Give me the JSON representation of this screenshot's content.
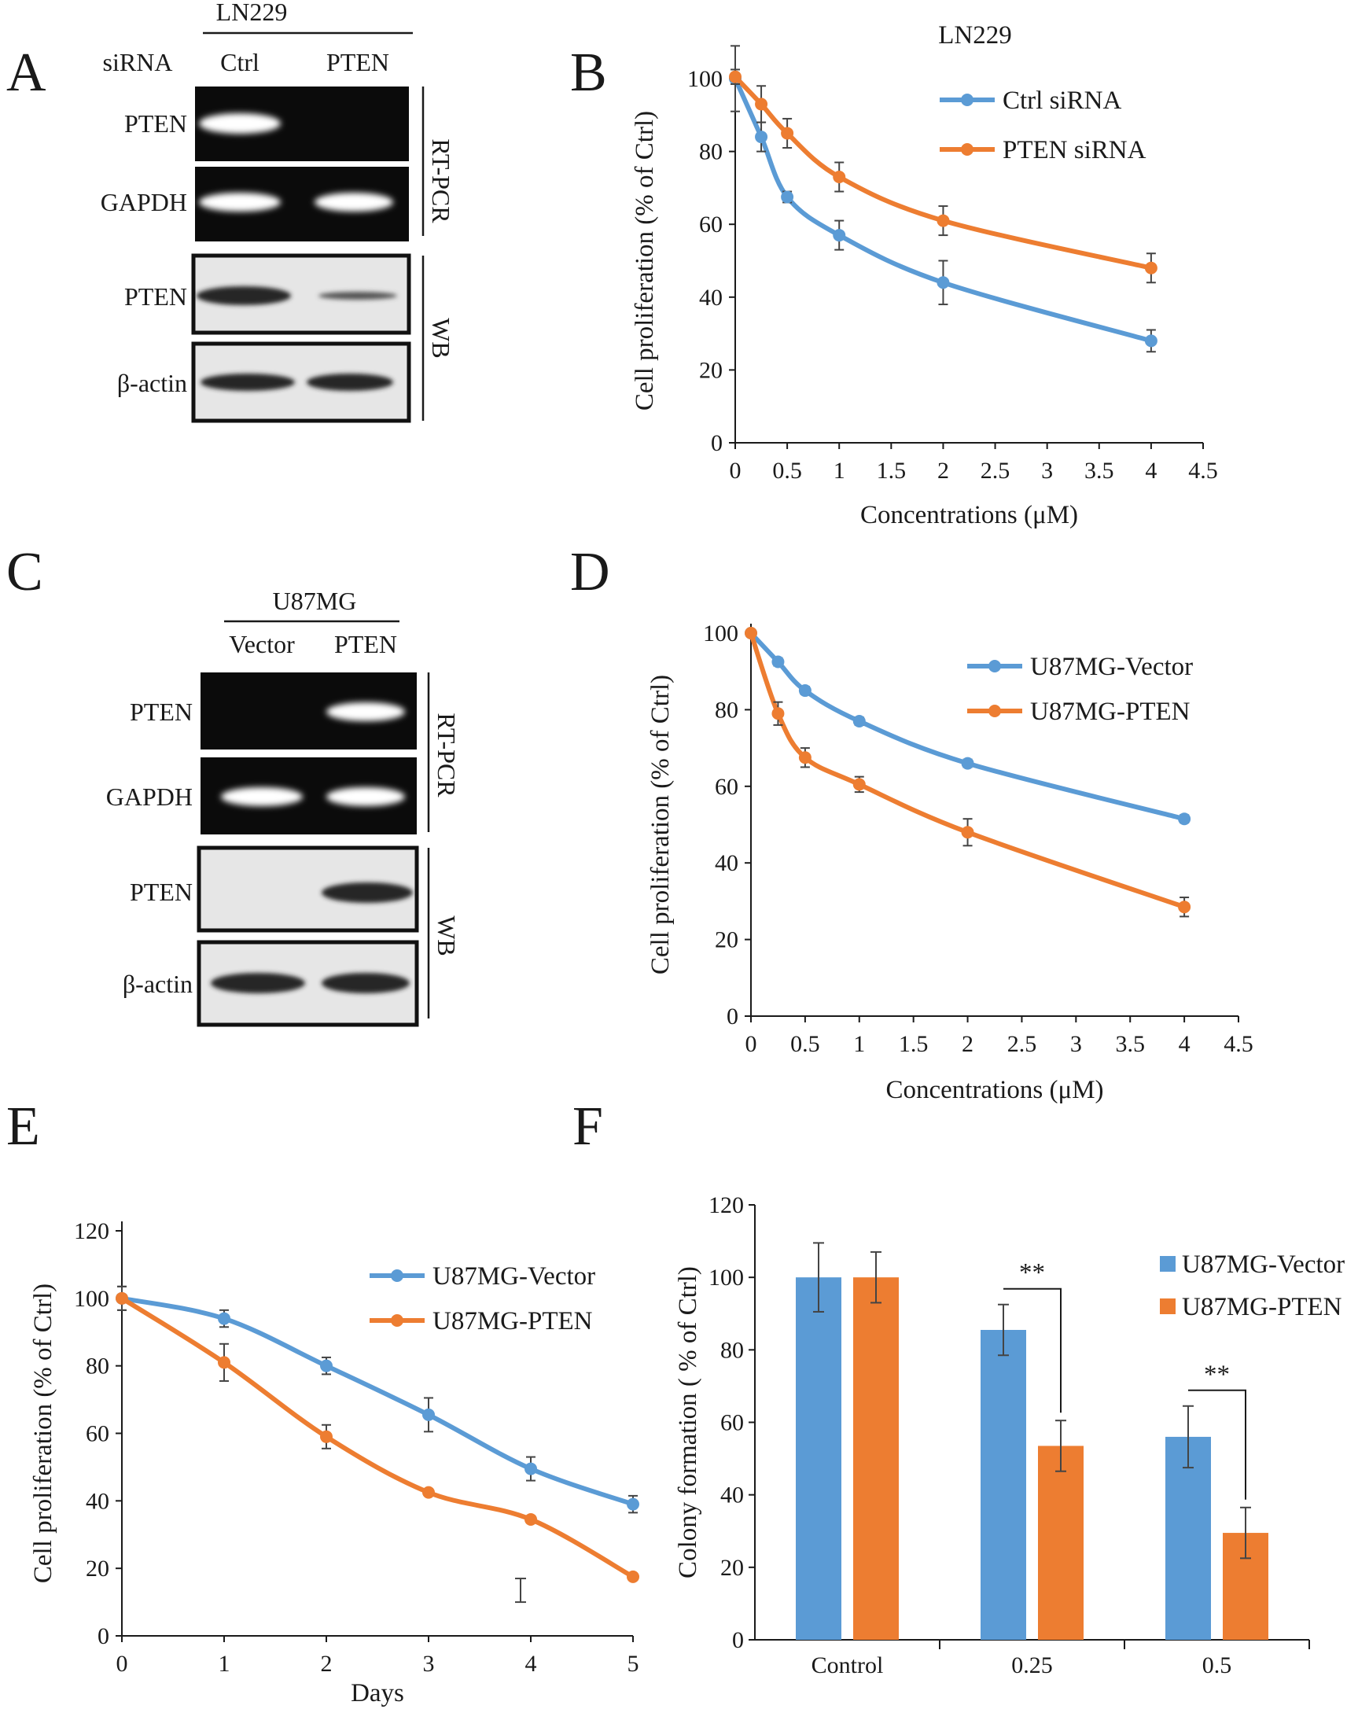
{
  "figure": {
    "panels": [
      "A",
      "B",
      "C",
      "D",
      "E",
      "F"
    ]
  },
  "colors": {
    "blue": "#5b9bd5",
    "orange": "#ed7d31",
    "dark": "#1a1a1a"
  },
  "gel_a": {
    "header": "LN229",
    "row_title": "siRNA",
    "lanes": [
      "Ctrl",
      "PTEN"
    ],
    "rows": [
      "PTEN",
      "GAPDH",
      "PTEN",
      "β-actin"
    ],
    "methods": [
      "RT-PCR",
      "WB"
    ]
  },
  "gel_c": {
    "header": "U87MG",
    "lanes": [
      "Vector",
      "PTEN"
    ],
    "rows": [
      "PTEN",
      "GAPDH",
      "PTEN",
      "β-actin"
    ],
    "methods": [
      "RT-PCR",
      "WB"
    ]
  },
  "chart_data": [
    {
      "panel": "B",
      "type": "line",
      "title": "LN229",
      "xlabel": "Concentrations (μM)",
      "ylabel": "Cell proliferation (% of Ctrl)",
      "xlim": [
        0,
        4.5
      ],
      "ylim": [
        0,
        100
      ],
      "xticks": [
        "0",
        "0.5",
        "1",
        "1.5",
        "2",
        "2.5",
        "3",
        "3.5",
        "4",
        "4.5"
      ],
      "yticks": [
        "0",
        "20",
        "40",
        "60",
        "80",
        "100"
      ],
      "legend": "top-right",
      "series": [
        {
          "name": "Ctrl siRNA",
          "color": "blue",
          "x": [
            0,
            0.25,
            0.5,
            1,
            2,
            4
          ],
          "values": [
            100,
            84,
            67.5,
            57,
            44,
            28
          ],
          "err": [
            9,
            4,
            1.5,
            4,
            6,
            3
          ]
        },
        {
          "name": "PTEN siRNA",
          "color": "orange",
          "x": [
            0,
            0.25,
            0.5,
            1,
            2,
            4
          ],
          "values": [
            100.5,
            93,
            85,
            73,
            61,
            48
          ],
          "err": [
            2,
            5,
            4,
            4,
            4,
            4
          ]
        }
      ]
    },
    {
      "panel": "D",
      "type": "line",
      "title": "",
      "xlabel": "Concentrations (μM)",
      "ylabel": "Cell proliferation (% of Ctrl)",
      "xlim": [
        0,
        4.5
      ],
      "ylim": [
        0,
        100
      ],
      "xticks": [
        "0",
        "0.5",
        "1",
        "1.5",
        "2",
        "2.5",
        "3",
        "3.5",
        "4",
        "4.5"
      ],
      "yticks": [
        "0",
        "20",
        "40",
        "60",
        "80",
        "100"
      ],
      "legend": "top-right",
      "series": [
        {
          "name": "U87MG-Vector",
          "color": "blue",
          "x": [
            0,
            0.25,
            0.5,
            1,
            2,
            4
          ],
          "values": [
            100,
            92.5,
            85,
            77,
            66,
            51.5
          ],
          "err": [
            0.5,
            1,
            1,
            1,
            1,
            1
          ]
        },
        {
          "name": "U87MG-PTEN",
          "color": "orange",
          "x": [
            0,
            0.25,
            0.5,
            1,
            2,
            4
          ],
          "values": [
            100,
            79,
            67.5,
            60.5,
            48,
            28.5
          ],
          "err": [
            0.5,
            3,
            2.5,
            2,
            3.5,
            2.5
          ]
        }
      ]
    },
    {
      "panel": "E",
      "type": "line",
      "title": "",
      "xlabel": "Days",
      "ylabel": "Cell proliferation (% of Ctrl)",
      "xlim": [
        0,
        5
      ],
      "ylim": [
        0,
        120
      ],
      "xticks": [
        "0",
        "1",
        "2",
        "3",
        "4",
        "5"
      ],
      "yticks": [
        "0",
        "20",
        "40",
        "60",
        "80",
        "100",
        "120"
      ],
      "legend": "top-right",
      "series": [
        {
          "name": "U87MG-Vector",
          "color": "blue",
          "x": [
            0,
            1,
            2,
            3,
            4,
            5
          ],
          "values": [
            100,
            94,
            80,
            65.5,
            49.5,
            39
          ],
          "err": [
            3.5,
            2.5,
            2.5,
            5,
            3.5,
            2.5
          ]
        },
        {
          "name": "U87MG-PTEN",
          "color": "orange",
          "x": [
            0,
            1,
            2,
            3,
            4,
            5
          ],
          "values": [
            100,
            81,
            59,
            42.5,
            34.5,
            17.5
          ],
          "err": [
            3.5,
            5.5,
            3.5,
            1,
            0.5,
            0.5
          ]
        }
      ],
      "stray_error_bar": {
        "x": 3.9,
        "y": 13.5,
        "err": 3.5
      }
    },
    {
      "panel": "F",
      "type": "bar",
      "title": "",
      "xlabel": "",
      "ylabel": "Colony formation (  % of Ctrl)",
      "ylim": [
        0,
        120
      ],
      "yticks": [
        "0",
        "20",
        "40",
        "60",
        "80",
        "100",
        "120"
      ],
      "categories": [
        "Control",
        "0.25",
        "0.5"
      ],
      "legend": "top-right",
      "series": [
        {
          "name": "U87MG-Vector",
          "color": "blue",
          "values": [
            100,
            85.5,
            56
          ],
          "err": [
            9.5,
            7,
            8.5
          ]
        },
        {
          "name": "U87MG-PTEN",
          "color": "orange",
          "values": [
            100,
            53.5,
            29.5
          ],
          "err": [
            7,
            7,
            7
          ]
        }
      ],
      "significance": [
        "**",
        "**"
      ]
    }
  ]
}
